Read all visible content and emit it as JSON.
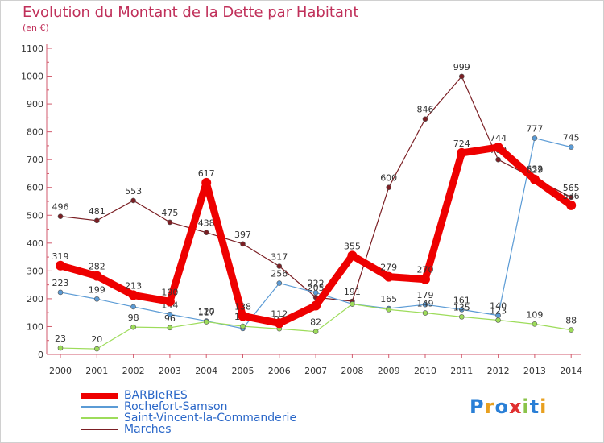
{
  "title": "Evolution du Montant de la Dette par Habitant",
  "subtitle": "(en €)",
  "logo": {
    "text": "Proxiti",
    "colors": [
      "#2a7fd6",
      "#e8a020",
      "#2a7fd6",
      "#e03030",
      "#8bc34a",
      "#2a7fd6",
      "#e8a020"
    ]
  },
  "chart_data": {
    "type": "line",
    "x": [
      "2000",
      "2001",
      "2002",
      "2003",
      "2004",
      "2005",
      "2006",
      "2007",
      "2008",
      "2009",
      "2010",
      "2011",
      "2012",
      "2013",
      "2014"
    ],
    "ylim": [
      0,
      1100
    ],
    "yticks": [
      0,
      100,
      200,
      300,
      400,
      500,
      600,
      700,
      800,
      900,
      1000,
      1100
    ],
    "grid": false,
    "legend_position": "bottom-left",
    "series": [
      {
        "name": "Marches",
        "color": "#7b1f24",
        "width": 1.2,
        "values": [
          496,
          481,
          553,
          475,
          438,
          397,
          317,
          205,
          191,
          600,
          846,
          999,
          700,
          632,
          565
        ]
      },
      {
        "name": "Rochefort-Samson",
        "color": "#5b9bd5",
        "width": 1.2,
        "values": [
          223,
          199,
          171,
          144,
          120,
          93,
          256,
          222,
          181,
          165,
          179,
          161,
          140,
          777,
          745
        ]
      },
      {
        "name": "Saint-Vincent-la-Commanderie",
        "color": "#9ddc5a",
        "width": 1.2,
        "values": [
          23,
          20,
          98,
          96,
          117,
          101,
          92,
          82,
          181,
          161,
          149,
          135,
          123,
          109,
          88
        ]
      },
      {
        "name": "BARBIeRES",
        "color": "#ee0000",
        "width": 9,
        "values": [
          319,
          282,
          213,
          190,
          617,
          138,
          112,
          175,
          355,
          279,
          270,
          724,
          744,
          629,
          536
        ]
      }
    ],
    "data_labels": {
      "Marches": [
        "496",
        "481",
        "553",
        "475",
        "438",
        "397",
        "317",
        "205",
        "191",
        "600",
        "846",
        "999",
        "700",
        "632",
        "565"
      ],
      "Rochefort-Samson": [
        "223",
        "199",
        "",
        "144",
        "120",
        "",
        "256",
        "222",
        "",
        "165",
        "179",
        "161",
        "140",
        "777",
        "745"
      ],
      "Saint-Vincent-la-Commanderie": [
        "23",
        "20",
        "98",
        "96",
        "117",
        "101",
        "92",
        "82",
        "",
        "",
        "149",
        "135",
        "123",
        "109",
        "88"
      ],
      "BARBIeRES": [
        "319",
        "282",
        "213",
        "190",
        "617",
        "138",
        "112",
        "",
        "355",
        "279",
        "270",
        "724",
        "744",
        "629",
        "536"
      ]
    },
    "legend": [
      {
        "name": "BARBIeRES",
        "color": "#ee0000",
        "thick": true
      },
      {
        "name": "Rochefort-Samson",
        "color": "#5b9bd5",
        "thick": false
      },
      {
        "name": "Saint-Vincent-la-Commanderie",
        "color": "#9ddc5a",
        "thick": false
      },
      {
        "name": "Marches",
        "color": "#7b1f24",
        "thick": false
      }
    ]
  }
}
